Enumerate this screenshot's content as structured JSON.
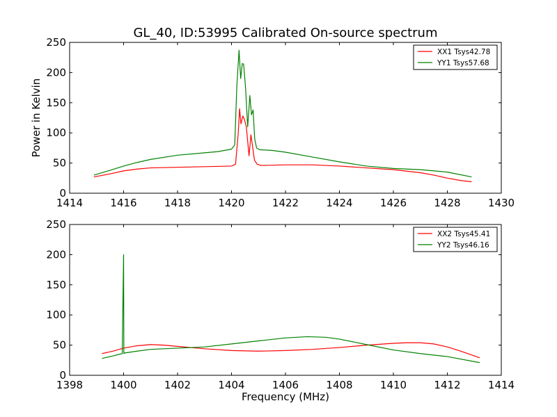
{
  "figure": {
    "title": "GL_40, ID:53995 Calibrated On-source spectrum"
  },
  "chart_data": [
    {
      "type": "line",
      "title": "GL_40, ID:53995 Calibrated On-source spectrum",
      "xlabel": "",
      "ylabel": "Power in Kelvin",
      "xlim": [
        1414,
        1430
      ],
      "ylim": [
        0,
        250
      ],
      "xticks": [
        1414,
        1416,
        1418,
        1420,
        1422,
        1424,
        1426,
        1428,
        1430
      ],
      "yticks": [
        0,
        50,
        100,
        150,
        200,
        250
      ],
      "grid": false,
      "legend": "top-right",
      "series": [
        {
          "name": "XX1 Tsys42.78",
          "color": "#ff0000",
          "x": [
            1414.9,
            1415.5,
            1416.0,
            1416.5,
            1417.0,
            1418.0,
            1419.0,
            1420.0,
            1420.15,
            1420.25,
            1420.3,
            1420.35,
            1420.42,
            1420.48,
            1420.55,
            1420.65,
            1420.72,
            1420.78,
            1420.85,
            1420.95,
            1421.1,
            1422.0,
            1423.0,
            1424.0,
            1425.0,
            1426.0,
            1427.0,
            1427.5,
            1428.0,
            1428.5,
            1428.9
          ],
          "y": [
            27,
            32,
            37,
            40,
            42,
            43,
            44,
            45,
            48,
            100,
            140,
            115,
            128,
            122,
            110,
            62,
            97,
            78,
            55,
            48,
            46,
            47,
            47,
            45,
            42,
            39,
            34,
            30,
            25,
            21,
            19
          ]
        },
        {
          "name": "YY1 Tsys57.68",
          "color": "#008000",
          "x": [
            1414.9,
            1415.5,
            1416.0,
            1416.5,
            1417.0,
            1418.0,
            1419.0,
            1419.5,
            1420.0,
            1420.12,
            1420.2,
            1420.28,
            1420.34,
            1420.4,
            1420.45,
            1420.52,
            1420.6,
            1420.68,
            1420.74,
            1420.8,
            1420.86,
            1420.93,
            1421.05,
            1421.5,
            1422.0,
            1423.0,
            1424.0,
            1425.0,
            1426.0,
            1427.0,
            1428.0,
            1428.9
          ],
          "y": [
            30,
            38,
            45,
            51,
            56,
            63,
            67,
            69,
            73,
            80,
            180,
            237,
            190,
            215,
            214,
            175,
            110,
            162,
            130,
            138,
            90,
            75,
            72,
            71,
            68,
            60,
            52,
            45,
            41,
            39,
            35,
            27
          ]
        }
      ]
    },
    {
      "type": "line",
      "title": "",
      "xlabel": "Frequency (MHz)",
      "ylabel": "",
      "xlim": [
        1398,
        1414
      ],
      "ylim": [
        0,
        250
      ],
      "xticks": [
        1398,
        1400,
        1402,
        1404,
        1406,
        1408,
        1410,
        1412,
        1414
      ],
      "yticks": [
        0,
        50,
        100,
        150,
        200,
        250
      ],
      "grid": false,
      "legend": "top-right",
      "series": [
        {
          "name": "XX2 Tsys45.41",
          "color": "#ff0000",
          "x": [
            1399.2,
            1399.6,
            1400.0,
            1400.5,
            1401.0,
            1401.5,
            1402.0,
            1403.0,
            1404.0,
            1405.0,
            1406.0,
            1407.0,
            1408.0,
            1409.0,
            1410.0,
            1410.5,
            1411.0,
            1411.5,
            1412.0,
            1412.5,
            1413.2
          ],
          "y": [
            36,
            40,
            45,
            49,
            51,
            50,
            48,
            44,
            41,
            40,
            41,
            43,
            46,
            50,
            53,
            54,
            54,
            52,
            47,
            40,
            29
          ]
        },
        {
          "name": "YY2 Tsys46.16",
          "color": "#008000",
          "x": [
            1399.2,
            1399.6,
            1399.95,
            1400.0,
            1400.01,
            1400.04,
            1400.5,
            1401.0,
            1402.0,
            1403.0,
            1404.0,
            1405.0,
            1406.0,
            1406.8,
            1407.5,
            1408.0,
            1409.0,
            1410.0,
            1411.0,
            1412.0,
            1413.2
          ],
          "y": [
            28,
            32,
            36,
            200,
            36,
            37,
            40,
            43,
            45,
            47,
            52,
            57,
            62,
            64,
            63,
            60,
            51,
            42,
            36,
            31,
            21
          ]
        }
      ]
    }
  ]
}
